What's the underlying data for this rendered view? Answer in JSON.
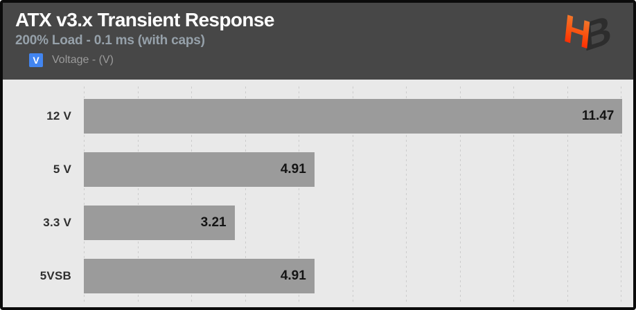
{
  "header": {
    "title": "ATX v3.x Transient Response",
    "subtitle": "200% Load - 0.1 ms (with caps)",
    "legend": {
      "symbol": "V",
      "symbol_color": "#4285f0",
      "label": "Voltage - (V)"
    },
    "logo": {
      "letter_h": "H",
      "letter_b": "B"
    }
  },
  "colors": {
    "frame_border": "#0b0b0b",
    "header_bg": "#474747",
    "title_text": "#ffffff",
    "subtitle_text": "#96a1aa",
    "legend_blue": "#4285f0",
    "chart_bg": "#e9e9e9",
    "gridline": "#cccccc",
    "bar_fill": "#9b9b9b",
    "category_text": "#2f2f2f",
    "value_text": "#141414",
    "logo_orange_top": "#ef8434",
    "logo_red_bottom": "#ff1c00",
    "logo_dark": "#2d2d2d"
  },
  "chart_data": {
    "type": "bar",
    "orientation": "horizontal",
    "title": "ATX v3.x Transient Response",
    "subtitle": "200% Load - 0.1 ms (with caps)",
    "series_label": "Voltage - (V)",
    "categories": [
      "12 V",
      "5 V",
      "3.3 V",
      "5VSB"
    ],
    "values": [
      11.47,
      4.91,
      3.21,
      4.91
    ],
    "value_labels": "inside-end",
    "xlim": [
      0,
      11.7
    ],
    "gridline_count": 10,
    "grid": true,
    "legend_position": "top-left",
    "x_axis_labels": false
  }
}
